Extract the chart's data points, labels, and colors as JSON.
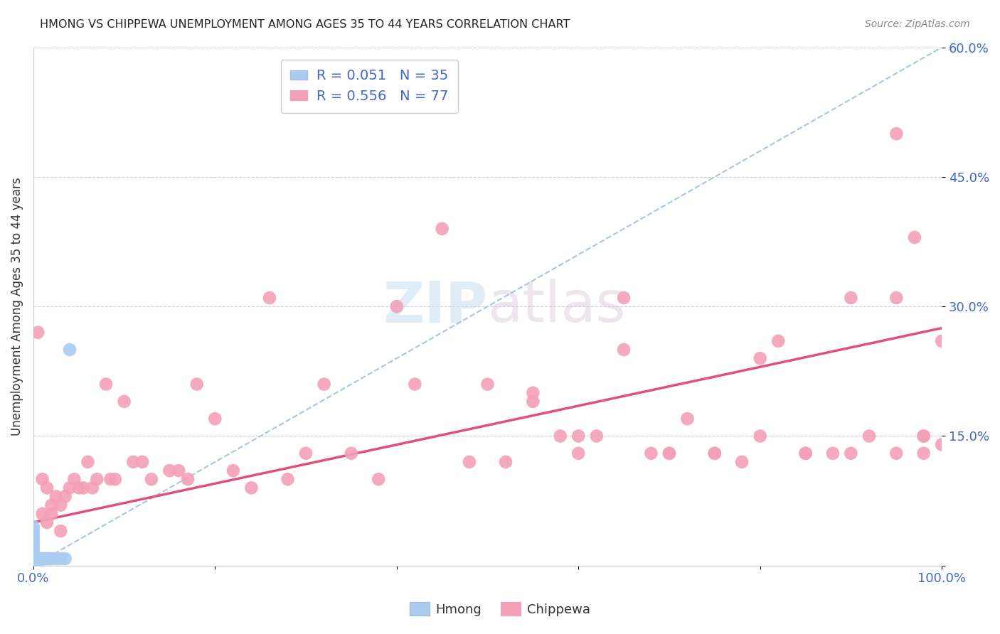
{
  "title": "HMONG VS CHIPPEWA UNEMPLOYMENT AMONG AGES 35 TO 44 YEARS CORRELATION CHART",
  "source": "Source: ZipAtlas.com",
  "ylabel": "Unemployment Among Ages 35 to 44 years",
  "xlim": [
    0.0,
    1.0
  ],
  "ylim": [
    0.0,
    0.6
  ],
  "xticks": [
    0.0,
    0.2,
    0.4,
    0.6,
    0.8,
    1.0
  ],
  "xtick_labels": [
    "0.0%",
    "",
    "",
    "",
    "",
    "100.0%"
  ],
  "yticks": [
    0.0,
    0.15,
    0.3,
    0.45,
    0.6
  ],
  "ytick_labels": [
    "",
    "15.0%",
    "30.0%",
    "45.0%",
    "60.0%"
  ],
  "hmong_R": 0.051,
  "hmong_N": 35,
  "chippewa_R": 0.556,
  "chippewa_N": 77,
  "hmong_color": "#aaccf0",
  "chippewa_color": "#f4a0b8",
  "chippewa_line_color": "#e0507a",
  "dash_line_color": "#a8c4e8",
  "legend_label_hmong": "Hmong",
  "legend_label_chippewa": "Chippewa",
  "watermark_color": "#ddeef8",
  "tick_color": "#4466cc",
  "title_color": "#222222",
  "source_color": "#888888",
  "chippewa_line_x0": 0.0,
  "chippewa_line_x1": 1.0,
  "chippewa_line_y0": 0.05,
  "chippewa_line_y1": 0.275,
  "chippewa_x": [
    0.005,
    0.01,
    0.01,
    0.015,
    0.015,
    0.02,
    0.02,
    0.025,
    0.03,
    0.03,
    0.035,
    0.04,
    0.045,
    0.05,
    0.055,
    0.06,
    0.065,
    0.07,
    0.08,
    0.085,
    0.09,
    0.1,
    0.11,
    0.12,
    0.13,
    0.15,
    0.16,
    0.17,
    0.18,
    0.2,
    0.22,
    0.24,
    0.26,
    0.28,
    0.3,
    0.32,
    0.35,
    0.38,
    0.4,
    0.42,
    0.45,
    0.48,
    0.5,
    0.52,
    0.55,
    0.58,
    0.6,
    0.62,
    0.65,
    0.68,
    0.7,
    0.72,
    0.75,
    0.78,
    0.8,
    0.82,
    0.85,
    0.88,
    0.9,
    0.92,
    0.95,
    0.97,
    0.98,
    1.0,
    0.95,
    0.98,
    0.55,
    0.6,
    0.65,
    0.7,
    0.75,
    0.8,
    0.85,
    0.9,
    0.95,
    0.98,
    1.0
  ],
  "chippewa_y": [
    0.27,
    0.1,
    0.06,
    0.09,
    0.05,
    0.06,
    0.07,
    0.08,
    0.07,
    0.04,
    0.08,
    0.09,
    0.1,
    0.09,
    0.09,
    0.12,
    0.09,
    0.1,
    0.21,
    0.1,
    0.1,
    0.19,
    0.12,
    0.12,
    0.1,
    0.11,
    0.11,
    0.1,
    0.21,
    0.17,
    0.11,
    0.09,
    0.31,
    0.1,
    0.13,
    0.21,
    0.13,
    0.1,
    0.3,
    0.21,
    0.39,
    0.12,
    0.21,
    0.12,
    0.19,
    0.15,
    0.15,
    0.15,
    0.25,
    0.13,
    0.13,
    0.17,
    0.13,
    0.12,
    0.24,
    0.26,
    0.13,
    0.13,
    0.31,
    0.15,
    0.5,
    0.38,
    0.13,
    0.26,
    0.31,
    0.15,
    0.2,
    0.13,
    0.31,
    0.13,
    0.13,
    0.15,
    0.13,
    0.13,
    0.13,
    0.15,
    0.14
  ],
  "hmong_x": [
    0.0,
    0.0,
    0.0,
    0.0,
    0.0,
    0.0,
    0.0,
    0.0,
    0.0,
    0.0,
    0.001,
    0.001,
    0.001,
    0.002,
    0.002,
    0.002,
    0.003,
    0.003,
    0.004,
    0.005,
    0.005,
    0.006,
    0.007,
    0.008,
    0.009,
    0.01,
    0.012,
    0.014,
    0.016,
    0.018,
    0.02,
    0.025,
    0.03,
    0.035,
    0.04
  ],
  "hmong_y": [
    0.0,
    0.005,
    0.01,
    0.015,
    0.02,
    0.025,
    0.03,
    0.035,
    0.04,
    0.045,
    0.0,
    0.005,
    0.01,
    0.0,
    0.005,
    0.01,
    0.0,
    0.005,
    0.005,
    0.0,
    0.005,
    0.005,
    0.005,
    0.007,
    0.008,
    0.008,
    0.008,
    0.008,
    0.008,
    0.008,
    0.008,
    0.008,
    0.008,
    0.008,
    0.25
  ]
}
